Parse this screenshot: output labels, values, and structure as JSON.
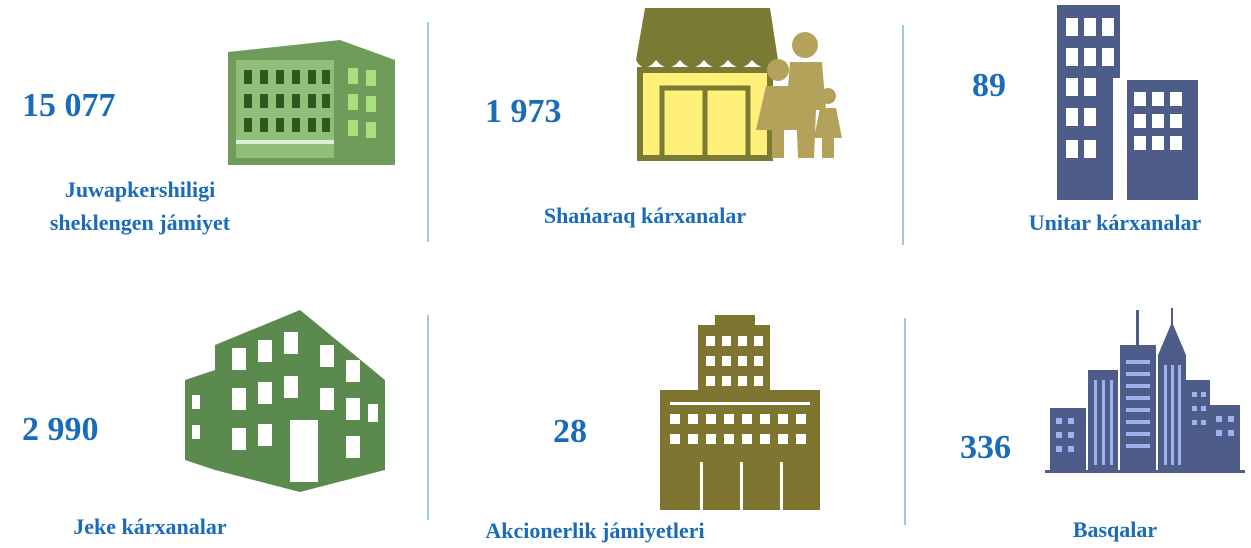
{
  "items": [
    {
      "value": "15 077",
      "label": "Juwapkershiligi sheklengen jámiyet"
    },
    {
      "value": "1 973",
      "label": "Shańaraq kárxanalar"
    },
    {
      "value": "89",
      "label": "Unitar kárxanalar"
    },
    {
      "value": "2 990",
      "label": "Jeke kárxanalar"
    },
    {
      "value": "28",
      "label": "Akcionerlik jámiyetleri"
    },
    {
      "value": "336",
      "label": "Basqalar"
    }
  ]
}
